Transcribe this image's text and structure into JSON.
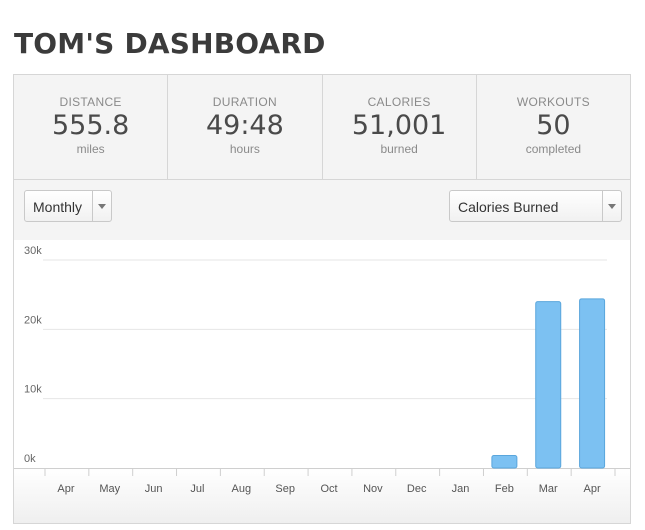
{
  "header": {
    "title": "TOM'S DASHBOARD"
  },
  "stats": [
    {
      "label": "DISTANCE",
      "value": "555.8",
      "unit": "miles"
    },
    {
      "label": "DURATION",
      "value": "49:48",
      "unit": "hours"
    },
    {
      "label": "CALORIES",
      "value": "51,001",
      "unit": "burned"
    },
    {
      "label": "WORKOUTS",
      "value": "50",
      "unit": "completed"
    }
  ],
  "controls": {
    "period": {
      "selected": "Monthly"
    },
    "metric": {
      "selected": "Calories Burned"
    }
  },
  "chart_data": {
    "type": "bar",
    "categories": [
      "Apr",
      "May",
      "Jun",
      "Jul",
      "Aug",
      "Sep",
      "Oct",
      "Nov",
      "Dec",
      "Jan",
      "Feb",
      "Mar",
      "Apr"
    ],
    "values": [
      0,
      0,
      0,
      0,
      0,
      0,
      0,
      0,
      0,
      0,
      1800,
      24000,
      24400
    ],
    "yticks": [
      "0k",
      "10k",
      "20k",
      "30k"
    ],
    "ylim": [
      0,
      30000
    ],
    "grid": true,
    "bar_color": "#7cc1f2",
    "bar_border": "#5aa6dc"
  }
}
